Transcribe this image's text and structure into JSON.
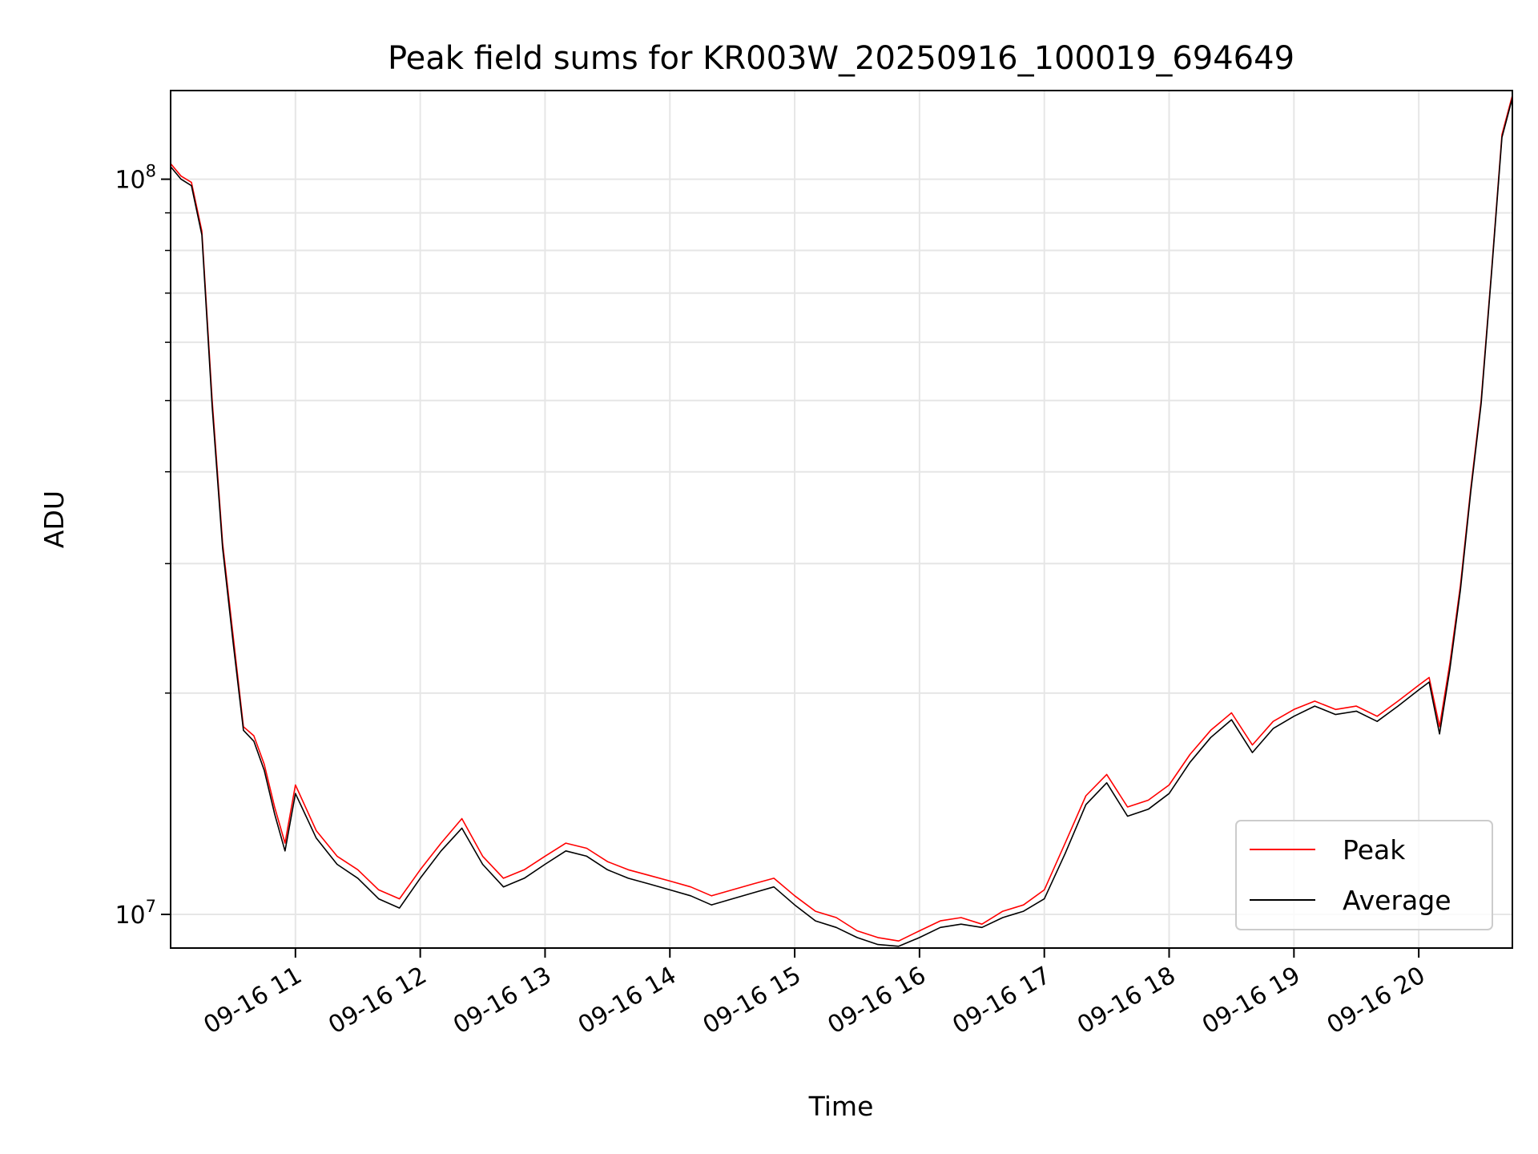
{
  "chart_data": {
    "type": "line",
    "title": "Peak field sums for KR003W_20250916_100019_694649",
    "xlabel": "Time",
    "ylabel": "ADU",
    "yscale": "log",
    "grid": true,
    "legend_position": "bottom-right",
    "xlim": [
      "2025-09-16 10:00",
      "2025-09-16 20:45"
    ],
    "ylim": [
      9000000,
      132000000
    ],
    "x_ticks": [
      {
        "time": "2025-09-16 11:00",
        "label": "09-16 11"
      },
      {
        "time": "2025-09-16 12:00",
        "label": "09-16 12"
      },
      {
        "time": "2025-09-16 13:00",
        "label": "09-16 13"
      },
      {
        "time": "2025-09-16 14:00",
        "label": "09-16 14"
      },
      {
        "time": "2025-09-16 15:00",
        "label": "09-16 15"
      },
      {
        "time": "2025-09-16 16:00",
        "label": "09-16 16"
      },
      {
        "time": "2025-09-16 17:00",
        "label": "09-16 17"
      },
      {
        "time": "2025-09-16 18:00",
        "label": "09-16 18"
      },
      {
        "time": "2025-09-16 19:00",
        "label": "09-16 19"
      },
      {
        "time": "2025-09-16 20:00",
        "label": "09-16 20"
      }
    ],
    "y_major_ticks": [
      {
        "value": 10000000,
        "base": "10",
        "exp": "7"
      },
      {
        "value": 100000000,
        "base": "10",
        "exp": "8"
      }
    ],
    "y_minor_ticks": [
      20000000,
      30000000,
      40000000,
      50000000,
      60000000,
      70000000,
      80000000,
      90000000
    ],
    "x": [
      "2025-09-16 10:00",
      "2025-09-16 10:05",
      "2025-09-16 10:10",
      "2025-09-16 10:15",
      "2025-09-16 10:20",
      "2025-09-16 10:25",
      "2025-09-16 10:30",
      "2025-09-16 10:35",
      "2025-09-16 10:40",
      "2025-09-16 10:45",
      "2025-09-16 10:50",
      "2025-09-16 10:55",
      "2025-09-16 11:00",
      "2025-09-16 11:10",
      "2025-09-16 11:20",
      "2025-09-16 11:30",
      "2025-09-16 11:40",
      "2025-09-16 11:50",
      "2025-09-16 12:00",
      "2025-09-16 12:10",
      "2025-09-16 12:20",
      "2025-09-16 12:30",
      "2025-09-16 12:40",
      "2025-09-16 12:50",
      "2025-09-16 13:00",
      "2025-09-16 13:10",
      "2025-09-16 13:20",
      "2025-09-16 13:30",
      "2025-09-16 13:40",
      "2025-09-16 13:50",
      "2025-09-16 14:00",
      "2025-09-16 14:10",
      "2025-09-16 14:20",
      "2025-09-16 14:30",
      "2025-09-16 14:40",
      "2025-09-16 14:50",
      "2025-09-16 15:00",
      "2025-09-16 15:10",
      "2025-09-16 15:20",
      "2025-09-16 15:30",
      "2025-09-16 15:40",
      "2025-09-16 15:50",
      "2025-09-16 16:00",
      "2025-09-16 16:10",
      "2025-09-16 16:20",
      "2025-09-16 16:30",
      "2025-09-16 16:40",
      "2025-09-16 16:50",
      "2025-09-16 17:00",
      "2025-09-16 17:10",
      "2025-09-16 17:20",
      "2025-09-16 17:30",
      "2025-09-16 17:40",
      "2025-09-16 17:50",
      "2025-09-16 18:00",
      "2025-09-16 18:10",
      "2025-09-16 18:20",
      "2025-09-16 18:30",
      "2025-09-16 18:40",
      "2025-09-16 18:50",
      "2025-09-16 19:00",
      "2025-09-16 19:10",
      "2025-09-16 19:20",
      "2025-09-16 19:30",
      "2025-09-16 19:40",
      "2025-09-16 19:50",
      "2025-09-16 20:00",
      "2025-09-16 20:05",
      "2025-09-16 20:10",
      "2025-09-16 20:15",
      "2025-09-16 20:20",
      "2025-09-16 20:25",
      "2025-09-16 20:30",
      "2025-09-16 20:35",
      "2025-09-16 20:40",
      "2025-09-16 20:45"
    ],
    "series": [
      {
        "name": "Peak",
        "color": "#ff0000",
        "values": [
          105000000,
          101000000,
          99000000,
          85000000,
          50000000,
          32000000,
          24000000,
          18000000,
          17500000,
          16000000,
          14000000,
          12500000,
          15000000,
          13000000,
          12000000,
          11500000,
          10800000,
          10500000,
          11500000,
          12500000,
          13500000,
          12000000,
          11200000,
          11500000,
          12000000,
          12500000,
          12300000,
          11800000,
          11500000,
          11300000,
          11100000,
          10900000,
          10600000,
          10800000,
          11000000,
          11200000,
          10600000,
          10100000,
          9900000,
          9500000,
          9300000,
          9200000,
          9500000,
          9800000,
          9900000,
          9700000,
          10100000,
          10300000,
          10800000,
          12500000,
          14500000,
          15500000,
          14000000,
          14300000,
          15000000,
          16500000,
          17800000,
          18800000,
          17000000,
          18300000,
          19000000,
          19500000,
          19000000,
          19200000,
          18600000,
          19500000,
          20500000,
          21000000,
          18000000,
          22000000,
          28000000,
          38000000,
          50000000,
          75000000,
          115000000,
          130000000
        ]
      },
      {
        "name": "Average",
        "color": "#000000",
        "values": [
          104000000,
          100000000,
          98000000,
          84000000,
          49000000,
          31500000,
          23500000,
          17800000,
          17200000,
          15700000,
          13700000,
          12200000,
          14600000,
          12700000,
          11700000,
          11200000,
          10500000,
          10200000,
          11200000,
          12200000,
          13100000,
          11700000,
          10900000,
          11200000,
          11700000,
          12200000,
          12000000,
          11500000,
          11200000,
          11000000,
          10800000,
          10600000,
          10300000,
          10500000,
          10700000,
          10900000,
          10300000,
          9800000,
          9600000,
          9300000,
          9100000,
          9050000,
          9300000,
          9600000,
          9700000,
          9600000,
          9900000,
          10100000,
          10500000,
          12100000,
          14100000,
          15100000,
          13600000,
          13900000,
          14600000,
          16100000,
          17400000,
          18400000,
          16600000,
          17900000,
          18600000,
          19200000,
          18700000,
          18900000,
          18300000,
          19200000,
          20200000,
          20700000,
          17600000,
          21600000,
          27600000,
          37600000,
          49500000,
          74500000,
          114000000,
          129000000
        ]
      }
    ]
  }
}
